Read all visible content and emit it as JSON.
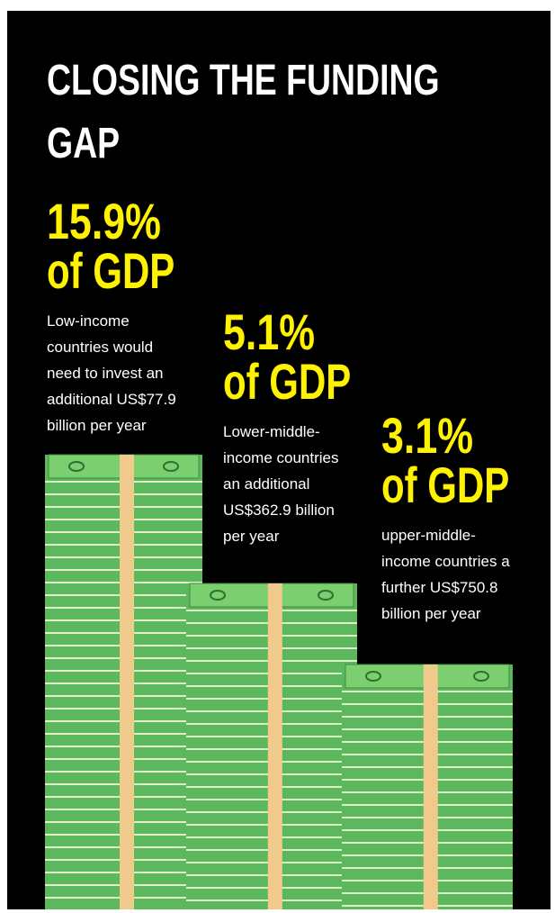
{
  "title_lines": [
    "CLOSING THE FUNDING",
    "GAP"
  ],
  "items": [
    {
      "figure": "15.9%",
      "unit": "of GDP",
      "description": [
        "Low-income",
        "countries would",
        "need to invest an",
        "additional US$77.9",
        "billion per year"
      ]
    },
    {
      "figure": "5.1%",
      "unit": "of GDP",
      "description": [
        "Lower-middle-",
        "income countries",
        "an additional",
        "US$362.9 billion",
        "per year"
      ]
    },
    {
      "figure": "3.1%",
      "unit": "of GDP",
      "description": [
        "upper-middle-",
        "income countries a",
        "further US$750.8",
        "billion per year"
      ]
    }
  ]
}
